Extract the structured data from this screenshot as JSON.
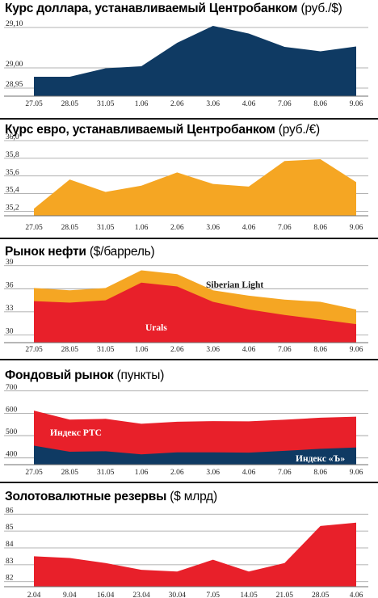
{
  "panels": [
    {
      "title_bold": "Курс доллара, устанавливаемый Центробанком",
      "unit": "(руб./$)"
    },
    {
      "title_bold": "Курс евро, устанавливаемый Центробанком",
      "unit": "(руб./€)"
    },
    {
      "title_bold": "Рынок нефти",
      "unit": "($/баррель)"
    },
    {
      "title_bold": "Фондовый рынок",
      "unit": "(пункты)"
    },
    {
      "title_bold": "Золотовалютные резервы",
      "unit": "($ млрд)"
    }
  ],
  "chart_data": [
    {
      "type": "area",
      "title": "Курс доллара, устанавливаемый Центробанком (руб./$)",
      "categories": [
        "27.05",
        "28.05",
        "31.05",
        "1.06",
        "2.06",
        "3.06",
        "4.06",
        "7.06",
        "8.06",
        "9.06"
      ],
      "ylim": [
        28.93,
        29.12
      ],
      "yticks": [
        "28,95",
        "29,00",
        "29,10"
      ],
      "ytick_values": [
        28.95,
        29.0,
        29.1
      ],
      "series": [
        {
          "values": [
            28.978,
            28.978,
            28.999,
            29.004,
            29.062,
            29.104,
            29.085,
            29.052,
            29.041,
            29.053
          ],
          "color": "#0f3a63"
        }
      ],
      "grid": true
    },
    {
      "type": "area",
      "title": "Курс евро, устанавливаемый Центробанком (руб./€)",
      "categories": [
        "27.05",
        "28.05",
        "31.05",
        "1.06",
        "2.06",
        "3.06",
        "4.06",
        "7.06",
        "8.06",
        "9.06"
      ],
      "ylim": [
        35.15,
        36.0
      ],
      "yticks": [
        "35,2",
        "35,4",
        "35,6",
        "35,8",
        "36,0"
      ],
      "ytick_values": [
        35.2,
        35.4,
        35.6,
        35.8,
        36.0
      ],
      "series": [
        {
          "values": [
            35.23,
            35.56,
            35.42,
            35.49,
            35.64,
            35.51,
            35.48,
            35.77,
            35.79,
            35.53
          ],
          "color": "#f5a623"
        }
      ],
      "grid": true
    },
    {
      "type": "area",
      "title": "Рынок нефти ($/баррель)",
      "categories": [
        "27.05",
        "28.05",
        "31.05",
        "1.06",
        "2.06",
        "3.06",
        "4.06",
        "7.06",
        "8.06",
        "9.06"
      ],
      "ylim": [
        29.0,
        39.5
      ],
      "yticks": [
        "30",
        "33",
        "36",
        "39"
      ],
      "ytick_values": [
        30,
        33,
        36,
        39
      ],
      "series": [
        {
          "name": "Siberian Light",
          "values": [
            36.1,
            35.8,
            36.1,
            38.4,
            37.9,
            35.8,
            35.1,
            34.6,
            34.3,
            33.3
          ],
          "color": "#f5a623"
        },
        {
          "name": "Urals",
          "values": [
            34.4,
            34.2,
            34.5,
            36.8,
            36.3,
            34.3,
            33.3,
            32.6,
            32.0,
            31.4
          ],
          "color": "#e8202a"
        }
      ],
      "grid": true
    },
    {
      "type": "area",
      "title": "Фондовый рынок (пункты)",
      "categories": [
        "27.05",
        "28.05",
        "31.05",
        "1.06",
        "2.06",
        "3.06",
        "4.06",
        "7.06",
        "8.06",
        "9.06"
      ],
      "ylim": [
        370,
        710
      ],
      "yticks": [
        "400",
        "500",
        "600",
        "700"
      ],
      "ytick_values": [
        400,
        500,
        600,
        700
      ],
      "series": [
        {
          "name": "Индекс РТС",
          "values": [
            612,
            572,
            575,
            553,
            562,
            565,
            564,
            571,
            580,
            585
          ],
          "color": "#e8202a"
        },
        {
          "name": "Индекс «Ъ»",
          "values": [
            455,
            428,
            430,
            416,
            425,
            425,
            424,
            432,
            441,
            447
          ],
          "color": "#0f3a63"
        }
      ],
      "grid": true
    },
    {
      "type": "area",
      "title": "Золотовалютные резервы ($ млрд)",
      "categories": [
        "2.04",
        "9.04",
        "16.04",
        "23.04",
        "30.04",
        "7.05",
        "14.05",
        "21.05",
        "28.05",
        "4.06"
      ],
      "ylim": [
        81.7,
        86.3
      ],
      "yticks": [
        "82",
        "83",
        "84",
        "85",
        "86"
      ],
      "ytick_values": [
        82,
        83,
        84,
        85,
        86
      ],
      "series": [
        {
          "values": [
            83.5,
            83.4,
            83.1,
            82.7,
            82.6,
            83.3,
            82.6,
            83.1,
            85.3,
            85.5
          ],
          "color": "#e8202a"
        }
      ],
      "grid": true
    }
  ]
}
